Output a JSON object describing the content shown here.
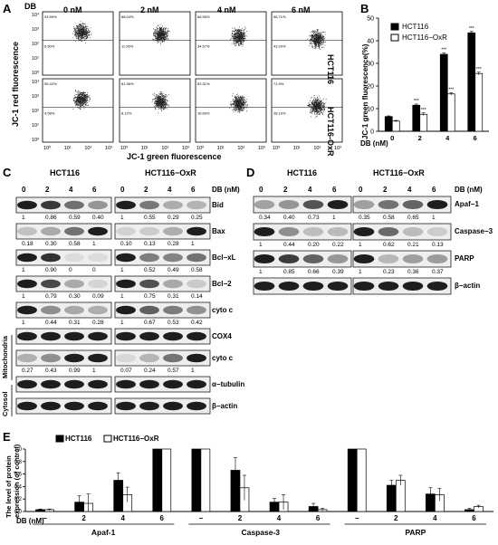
{
  "panel_letters": [
    "A",
    "B",
    "C",
    "D",
    "E"
  ],
  "panelA": {
    "db_label": "DB",
    "concentrations": [
      "0 nM",
      "2 nM",
      "4 nM",
      "6 nM"
    ],
    "rows": [
      {
        "name": "HCT116",
        "quadrant_top": [
          "93.59%",
          "88.04%",
          "66.55%",
          "56.71%"
        ],
        "quadrant_bottom": [
          "6.50%",
          "11.96%",
          "34.57%",
          "43.29%"
        ]
      },
      {
        "name": "HCT116-OxR",
        "quadrant_top": [
          "95.42%",
          "81.96%",
          "83.31%",
          "71.9%"
        ],
        "quadrant_bottom": [
          "4.58%",
          "8.12%",
          "16.69%",
          "28.10%"
        ]
      }
    ],
    "y_ticks": [
      "10⁴",
      "10³",
      "10²",
      "10¹",
      "10⁰"
    ],
    "x_ticks": [
      "10⁰",
      "10¹",
      "10²",
      "10³"
    ],
    "ylabel": "JC-1 red fluorescence",
    "xlabel": "JC-1 green fluorescence"
  },
  "chart_data": [
    {
      "type": "bar",
      "panel": "B",
      "categories": [
        "0",
        "2",
        "4",
        "6"
      ],
      "series": [
        {
          "name": "HCT116",
          "values": [
            6.5,
            11.5,
            34,
            43.5
          ],
          "errors": [
            0.3,
            0.5,
            0.6,
            0.6
          ]
        },
        {
          "name": "HCT116−OxR",
          "values": [
            4.5,
            7.5,
            16.5,
            25.5
          ],
          "errors": [
            0.3,
            0.6,
            0.5,
            0.6
          ]
        }
      ],
      "significance": [
        "",
        "***",
        "***",
        "***"
      ],
      "ylabel": "JC-1 green fluorescence(%)",
      "xlabel": "DB (nM)",
      "ylim": [
        0,
        50
      ],
      "yticks": [
        "0",
        "10",
        "20",
        "30",
        "40",
        "50"
      ],
      "legend": "top-left",
      "colors": {
        "HCT116": "#000000",
        "HCT116−OxR": "#ffffff"
      }
    },
    {
      "type": "bar",
      "panel": "E",
      "groups": [
        "Apaf-1",
        "Caspase-3",
        "PARP"
      ],
      "categories": [
        "−",
        "2",
        "4",
        "6"
      ],
      "series": [
        {
          "name": "HCT116",
          "values": [
            [
              0.03,
              0.15,
              0.5,
              1.0
            ],
            [
              1.0,
              0.66,
              0.15,
              0.08
            ],
            [
              1.0,
              0.42,
              0.28,
              0.03
            ]
          ],
          "errors": [
            [
              0.01,
              0.1,
              0.12,
              0.0
            ],
            [
              0.0,
              0.2,
              0.06,
              0.05
            ],
            [
              0.0,
              0.08,
              0.1,
              0.02
            ]
          ]
        },
        {
          "name": "HCT116−OxR",
          "values": [
            [
              0.03,
              0.13,
              0.27,
              1.0
            ],
            [
              1.0,
              0.38,
              0.15,
              0.03
            ],
            [
              1.0,
              0.5,
              0.27,
              0.08
            ]
          ],
          "errors": [
            [
              0.01,
              0.15,
              0.12,
              0.0
            ],
            [
              0.0,
              0.2,
              0.12,
              0.02
            ],
            [
              0.0,
              0.08,
              0.1,
              0.02
            ]
          ]
        }
      ],
      "ylabel": "The level of protein expression (of control)",
      "xlabel": "DB (nM)",
      "ylim": [
        0,
        1.0
      ],
      "yticks": [
        "0.0",
        "0.2",
        "0.4",
        "0.6",
        "0.8",
        "1.0"
      ],
      "legend": "top-left"
    }
  ],
  "panelC": {
    "lines": [
      "HCT116",
      "HCT116−OxR"
    ],
    "db_label": "DB (nM)",
    "doses": [
      "0",
      "2",
      "4",
      "6"
    ],
    "blots": [
      {
        "name": "Bid",
        "values": [
          [
            "1",
            "0.86",
            "0.59",
            "0.40"
          ],
          [
            "1",
            "0.55",
            "0.29",
            "0.25"
          ]
        ]
      },
      {
        "name": "Bax",
        "values": [
          [
            "0.18",
            "0.30",
            "0.58",
            "1"
          ],
          [
            "0.10",
            "0.13",
            "0.28",
            "1"
          ]
        ]
      },
      {
        "name": "Bcl−xL",
        "values": [
          [
            "1",
            "0.90",
            "0",
            "0"
          ],
          [
            "1",
            "0.52",
            "0.49",
            "0.58"
          ]
        ]
      },
      {
        "name": "Bcl−2",
        "values": [
          [
            "1",
            "0.79",
            "0.30",
            "0.09"
          ],
          [
            "1",
            "0.75",
            "0.31",
            "0.14"
          ]
        ]
      },
      {
        "name": "cyto c",
        "values": [
          [
            "1",
            "0.44",
            "0.31",
            "0.28"
          ],
          [
            "1",
            "0.67",
            "0.53",
            "0.42"
          ]
        ]
      },
      {
        "name": "COX4",
        "values": null
      },
      {
        "name": "cyto c",
        "values": [
          [
            "0.27",
            "0.43",
            "0.99",
            "1"
          ],
          [
            "0.07",
            "0.24",
            "0.57",
            "1"
          ]
        ]
      },
      {
        "name": "α−tubulin",
        "values": null
      },
      {
        "name": "β−actin",
        "values": null
      }
    ],
    "fractions": [
      "Mitochondria",
      "Cytosol"
    ]
  },
  "panelD": {
    "lines": [
      "HCT116",
      "HCT116−OxR"
    ],
    "db_label": "DB (nM)",
    "doses": [
      "0",
      "2",
      "4",
      "6"
    ],
    "blots": [
      {
        "name": "Apaf−1",
        "values": [
          [
            "0.34",
            "0.40",
            "0.73",
            "1"
          ],
          [
            "0.35",
            "0.58",
            "0.65",
            "1"
          ]
        ]
      },
      {
        "name": "Caspase−3",
        "values": [
          [
            "1",
            "0.44",
            "0.20",
            "0.22"
          ],
          [
            "1",
            "0.62",
            "0.21",
            "0.13"
          ]
        ]
      },
      {
        "name": "PARP",
        "values": [
          [
            "1",
            "0.85",
            "0.66",
            "0.39"
          ],
          [
            "1",
            "0.23",
            "0.36",
            "0.37"
          ]
        ]
      },
      {
        "name": "β−actin",
        "values": null
      }
    ]
  }
}
